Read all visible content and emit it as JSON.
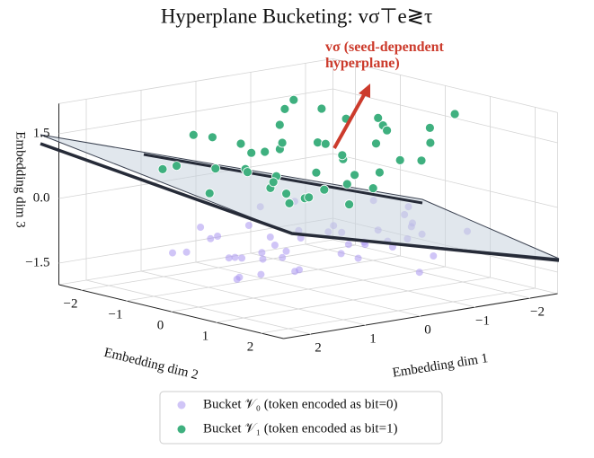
{
  "chart_data": {
    "type": "scatter3d",
    "title": "Hyperplane Bucketing: vσ⊤e≷τ",
    "annotation": "vσ (seed-dependent hyperplane)",
    "xlabel": "Embedding dim 1",
    "ylabel": "Embedding dim 2",
    "zlabel": "Embedding dim 3",
    "xlim": [
      -2.5,
      2.5
    ],
    "ylim": [
      -2.5,
      2.5
    ],
    "zlim": [
      -2,
      2.2
    ],
    "xticks": [
      {
        "value": -2,
        "label": "−2"
      },
      {
        "value": -1,
        "label": "−1"
      },
      0,
      1,
      2
    ],
    "yticks": [
      {
        "value": -2,
        "label": "−2"
      },
      {
        "value": -1,
        "label": "−1"
      },
      0,
      1,
      2
    ],
    "zticks": [
      {
        "value": -1.5,
        "label": "−1.5"
      },
      {
        "value": 0,
        "label": "0.0"
      },
      1.5
    ],
    "grid": true,
    "legend": "lower center",
    "series": [
      {
        "name": "Bucket 𝒱₀ (token encoded as bit=0)",
        "color": "#a996f0",
        "x": [
          -0.2,
          0.6,
          -1.0,
          1.3,
          0.1,
          -1.5,
          0.9,
          -0.4,
          1.7,
          -0.8,
          0.3,
          -1.2,
          0.7,
          -0.1,
          1.1,
          -1.8,
          0.5,
          -0.6,
          1.4,
          -0.3,
          0.0,
          -0.9,
          1.9,
          -1.3,
          0.2,
          -0.7,
          1.0,
          -0.2,
          0.8,
          -1.6,
          0.4,
          -0.5,
          1.2,
          -1.1,
          0.6,
          -0.3,
          1.5,
          -0.9,
          0.1,
          -1.4,
          0.9,
          -0.6,
          0.3,
          -2.0,
          1.6
        ],
        "y": [
          0.5,
          -0.3,
          1.1,
          0.0,
          -1.2,
          0.4,
          0.8,
          -0.7,
          -0.1,
          1.5,
          0.2,
          -0.9,
          1.3,
          -1.6,
          0.6,
          0.1,
          -0.4,
          1.8,
          -1.0,
          0.9,
          -0.2,
          -1.4,
          0.3,
          1.2,
          -0.6,
          0.7,
          -1.8,
          1.0,
          0.4,
          -0.5,
          1.6,
          -1.1,
          -0.3,
          0.8,
          -0.8,
          1.4,
          0.2,
          -0.2,
          2.0,
          0.5,
          -1.3,
          0.0,
          -0.7,
          1.1,
          0.9
        ],
        "z": [
          -0.6,
          -1.1,
          -0.4,
          -1.5,
          -0.8,
          -0.3,
          -1.2,
          -0.9,
          -0.5,
          -1.4,
          -0.7,
          -1.0,
          -0.2,
          -1.7,
          -0.6,
          -0.9,
          -1.3,
          -0.4,
          -1.1,
          -0.8,
          -1.6,
          -0.5,
          -0.3,
          -1.2,
          -0.9,
          -0.6,
          -1.4,
          -0.7,
          -1.0,
          -0.4,
          -0.8,
          -1.5,
          -1.1,
          -0.3,
          -1.8,
          -0.6,
          -0.9,
          -1.2,
          -0.5,
          -1.0,
          -0.7,
          -1.3,
          -0.2,
          -0.8,
          -1.1
        ]
      },
      {
        "name": "Bucket 𝒱₁ (token encoded as bit=1)",
        "color": "#3fb07f",
        "x": [
          0.1,
          -0.5,
          0.8,
          -1.2,
          1.5,
          0.3,
          -0.2,
          0.6,
          -0.9,
          1.1,
          -1.6,
          0.0,
          0.4,
          -0.7,
          1.8,
          -0.3,
          0.9,
          -1.4,
          0.2,
          -0.1,
          1.3,
          -0.8,
          0.5,
          -1.9,
          0.7,
          -0.4,
          1.0,
          -1.1,
          0.3,
          -0.6,
          1.6,
          -0.2,
          0.1,
          -1.3,
          0.8,
          -0.5,
          1.2,
          -1.0,
          0.6,
          -0.3,
          2.0,
          -2.1,
          0.4,
          -0.8,
          0.2
        ],
        "y": [
          0.3,
          -0.4,
          0.9,
          0.2,
          -1.1,
          -0.6,
          1.2,
          0.1,
          -0.8,
          0.5,
          -0.2,
          -1.5,
          1.4,
          0.7,
          0.0,
          -1.0,
          -0.3,
          1.0,
          0.6,
          -0.7,
          1.6,
          -1.3,
          -0.1,
          0.4,
          -1.7,
          1.1,
          0.8,
          -0.5,
          -0.9,
          0.3,
          0.6,
          1.8,
          -0.4,
          -1.2,
          0.2,
          0.9,
          -0.6,
          1.3,
          -1.4,
          0.5,
          -0.8,
          0.7,
          0.0,
          -0.2,
          1.0
        ],
        "z": [
          0.8,
          1.2,
          0.5,
          1.6,
          0.9,
          1.1,
          0.6,
          1.4,
          1.8,
          0.7,
          1.3,
          1.0,
          0.4,
          2.0,
          0.6,
          1.5,
          0.9,
          1.7,
          0.5,
          1.2,
          0.8,
          1.9,
          0.7,
          1.1,
          1.3,
          0.9,
          0.4,
          1.6,
          1.0,
          0.6,
          1.2,
          1.4,
          2.1,
          0.8,
          0.7,
          1.5,
          0.9,
          1.1,
          1.3,
          0.5,
          1.0,
          1.8,
          0.3,
          0.8,
          1.4
        ]
      }
    ]
  }
}
